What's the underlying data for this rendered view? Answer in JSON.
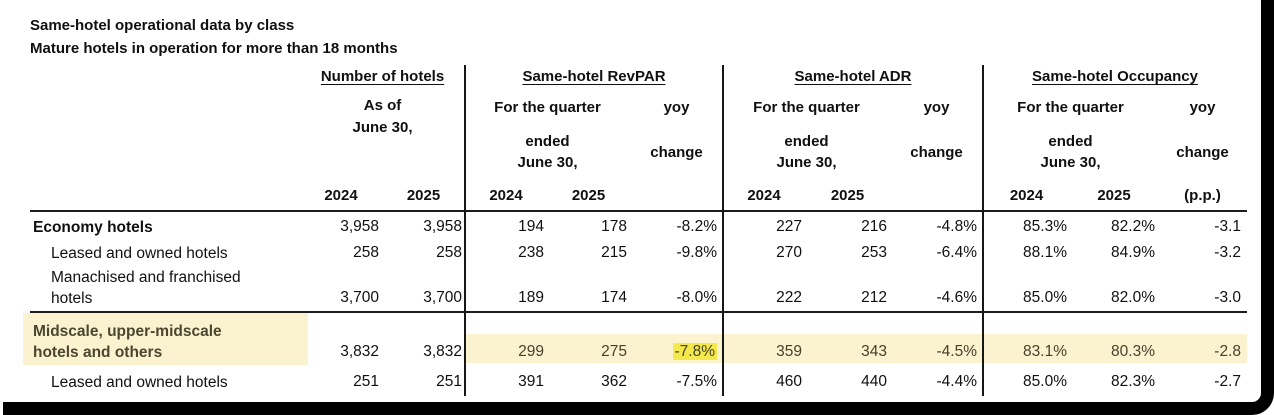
{
  "title": "Same-hotel operational data by class",
  "subtitle": "Mature hotels in operation for more than 18 months",
  "colors": {
    "highlight_band": "#FBF3CF",
    "highlight_strong": "#F5E84A"
  },
  "table": {
    "groups": [
      {
        "title": "Number of hotels",
        "line1": "As of",
        "line2": "June 30,",
        "years": [
          "2024",
          "2025"
        ]
      },
      {
        "title": "Same-hotel RevPAR",
        "for_quarter": "For the quarter",
        "ended": "ended",
        "june": "June 30,",
        "yoy": "yoy",
        "change": "change",
        "years": [
          "2024",
          "2025"
        ]
      },
      {
        "title": "Same-hotel ADR",
        "for_quarter": "For the quarter",
        "ended": "ended",
        "june": "June 30,",
        "yoy": "yoy",
        "change": "change",
        "years": [
          "2024",
          "2025"
        ]
      },
      {
        "title": "Same-hotel Occupancy",
        "for_quarter": "For the quarter",
        "ended": "ended",
        "june": "June 30,",
        "yoy": "yoy",
        "change": "change",
        "years": [
          "2024",
          "2025"
        ],
        "yoy_unit": "(p.p.)"
      }
    ],
    "rows": [
      {
        "label_lines": [
          "Economy hotels"
        ],
        "category": true,
        "highlighted": false,
        "values": [
          "3,958",
          "3,958",
          "194",
          "178",
          "-8.2%",
          "227",
          "216",
          "-4.8%",
          "85.3%",
          "82.2%",
          "-3.1"
        ]
      },
      {
        "label_lines": [
          "Leased and owned hotels"
        ],
        "category": false,
        "highlighted": false,
        "values": [
          "258",
          "258",
          "238",
          "215",
          "-9.8%",
          "270",
          "253",
          "-6.4%",
          "88.1%",
          "84.9%",
          "-3.2"
        ]
      },
      {
        "label_lines": [
          "Manachised and franchised",
          "hotels"
        ],
        "category": false,
        "highlighted": false,
        "values": [
          "3,700",
          "3,700",
          "189",
          "174",
          "-8.0%",
          "222",
          "212",
          "-4.6%",
          "85.0%",
          "82.0%",
          "-3.0"
        ]
      },
      {
        "label_lines": [
          "Midscale, upper-midscale",
          "hotels and others"
        ],
        "category": true,
        "highlighted": true,
        "strong_highlight_index": 4,
        "values": [
          "3,832",
          "3,832",
          "299",
          "275",
          "-7.8%",
          "359",
          "343",
          "-4.5%",
          "83.1%",
          "80.3%",
          "-2.8"
        ]
      },
      {
        "label_lines": [
          "Leased and owned hotels"
        ],
        "category": false,
        "highlighted": false,
        "values": [
          "251",
          "251",
          "391",
          "362",
          "-7.5%",
          "460",
          "440",
          "-4.4%",
          "85.0%",
          "82.3%",
          "-2.7"
        ]
      }
    ]
  }
}
